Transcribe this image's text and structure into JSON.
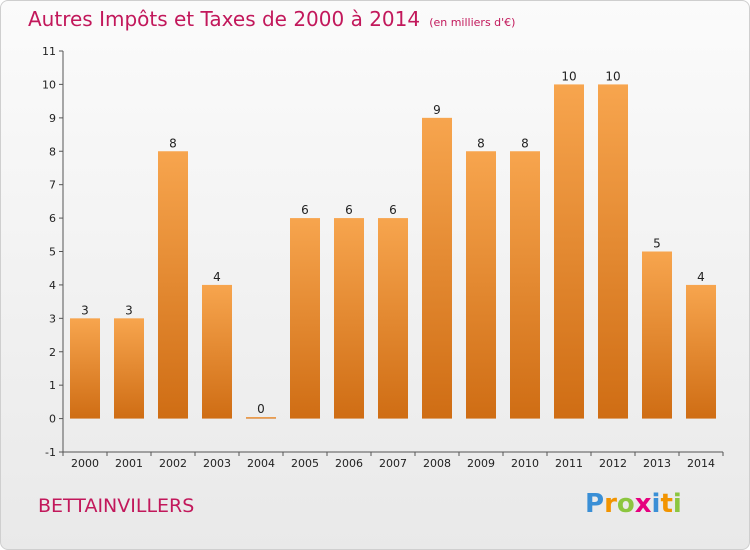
{
  "header": {
    "title": "Autres Impôts et Taxes de 2000 à 2014",
    "subtitle": "(en milliers d'€)"
  },
  "footer": {
    "commune": "BETTAINVILLERS",
    "logo_letters": [
      "P",
      "r",
      "o",
      "x",
      "i",
      "t",
      "i"
    ],
    "logo_colors": [
      "#3a8fd6",
      "#f29400",
      "#8cc63f",
      "#e6007e",
      "#3a8fd6",
      "#f29400",
      "#8cc63f"
    ]
  },
  "chart_data": {
    "type": "bar",
    "title": "Autres Impôts et Taxes de 2000 à 2014",
    "subtitle": "(en milliers d'€)",
    "categories": [
      "2000",
      "2001",
      "2002",
      "2003",
      "2004",
      "2005",
      "2006",
      "2007",
      "2008",
      "2009",
      "2010",
      "2011",
      "2012",
      "2013",
      "2014"
    ],
    "values": [
      3,
      3,
      8,
      4,
      0,
      6,
      6,
      6,
      9,
      8,
      8,
      10,
      10,
      5,
      4
    ],
    "data_labels": [
      "3",
      "3",
      "8",
      "4",
      "0",
      "6",
      "6",
      "6",
      "9",
      "8",
      "8",
      "10",
      "10",
      "5",
      "4"
    ],
    "ylim": [
      -1,
      11
    ],
    "yticks": [
      "-1",
      "0",
      "1",
      "2",
      "3",
      "4",
      "5",
      "6",
      "7",
      "8",
      "9",
      "10",
      "11"
    ],
    "xlabel": "",
    "ylabel": "",
    "grid": false,
    "legend": "none",
    "bar_color": "#f28c28"
  }
}
